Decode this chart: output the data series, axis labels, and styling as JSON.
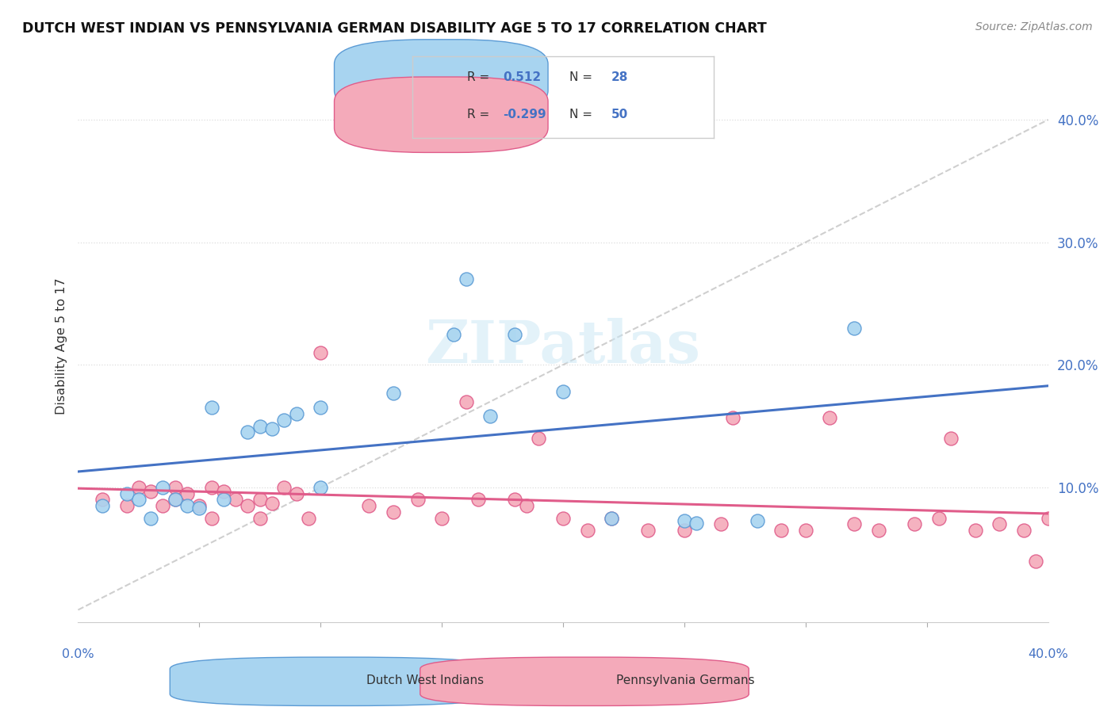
{
  "title": "DUTCH WEST INDIAN VS PENNSYLVANIA GERMAN DISABILITY AGE 5 TO 17 CORRELATION CHART",
  "source": "Source: ZipAtlas.com",
  "ylabel": "Disability Age 5 to 17",
  "xlim": [
    0.0,
    0.4
  ],
  "ylim": [
    -0.01,
    0.44
  ],
  "blue_R": "0.512",
  "blue_N": "28",
  "pink_R": "-0.299",
  "pink_N": "50",
  "legend_label_blue": "Dutch West Indians",
  "legend_label_pink": "Pennsylvania Germans",
  "blue_fill": "#A8D4F0",
  "pink_fill": "#F4AABA",
  "blue_edge": "#5B9BD5",
  "pink_edge": "#E05C8A",
  "blue_line": "#4472C4",
  "pink_line": "#E05C8A",
  "text_color_blue": "#4472C4",
  "grid_color": "#DDDDDD",
  "blue_scatter_x": [
    0.01,
    0.02,
    0.025,
    0.03,
    0.035,
    0.04,
    0.045,
    0.05,
    0.055,
    0.06,
    0.07,
    0.075,
    0.08,
    0.085,
    0.09,
    0.1,
    0.1,
    0.13,
    0.155,
    0.16,
    0.17,
    0.18,
    0.2,
    0.22,
    0.25,
    0.255,
    0.28,
    0.32
  ],
  "blue_scatter_y": [
    0.085,
    0.095,
    0.09,
    0.075,
    0.1,
    0.09,
    0.085,
    0.083,
    0.165,
    0.09,
    0.145,
    0.15,
    0.148,
    0.155,
    0.16,
    0.1,
    0.165,
    0.177,
    0.225,
    0.27,
    0.158,
    0.225,
    0.178,
    0.075,
    0.073,
    0.071,
    0.073,
    0.23
  ],
  "pink_scatter_x": [
    0.01,
    0.02,
    0.025,
    0.03,
    0.035,
    0.04,
    0.04,
    0.045,
    0.05,
    0.055,
    0.055,
    0.06,
    0.065,
    0.07,
    0.075,
    0.075,
    0.08,
    0.085,
    0.09,
    0.095,
    0.1,
    0.12,
    0.13,
    0.14,
    0.15,
    0.16,
    0.165,
    0.18,
    0.185,
    0.19,
    0.2,
    0.21,
    0.22,
    0.235,
    0.25,
    0.265,
    0.27,
    0.29,
    0.3,
    0.31,
    0.32,
    0.33,
    0.345,
    0.355,
    0.36,
    0.37,
    0.38,
    0.39,
    0.395,
    0.4
  ],
  "pink_scatter_y": [
    0.09,
    0.085,
    0.1,
    0.097,
    0.085,
    0.09,
    0.1,
    0.095,
    0.085,
    0.1,
    0.075,
    0.097,
    0.09,
    0.085,
    0.075,
    0.09,
    0.087,
    0.1,
    0.095,
    0.075,
    0.21,
    0.085,
    0.08,
    0.09,
    0.075,
    0.17,
    0.09,
    0.09,
    0.085,
    0.14,
    0.075,
    0.065,
    0.075,
    0.065,
    0.065,
    0.07,
    0.157,
    0.065,
    0.065,
    0.157,
    0.07,
    0.065,
    0.07,
    0.075,
    0.14,
    0.065,
    0.07,
    0.065,
    0.04,
    0.075
  ]
}
